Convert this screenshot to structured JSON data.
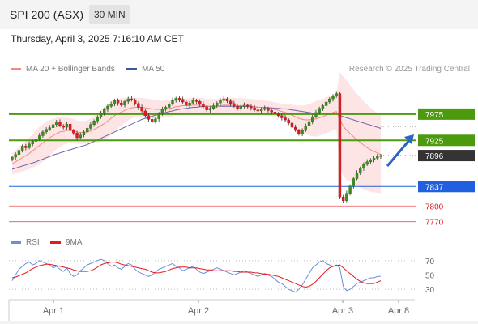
{
  "header": {
    "title": "SPI 200 (ASX)",
    "timeframe": "30 MIN",
    "datetime": "Thursday, April 3, 2025 7:16:10 AM CET"
  },
  "legend": {
    "main": [
      {
        "label": "MA 20 + Bollinger Bands",
        "color": "#f28b82"
      },
      {
        "label": "MA 50",
        "color": "#3c5a99"
      }
    ],
    "rsi": [
      {
        "label": "RSI",
        "color": "#6a8fd8"
      },
      {
        "label": "9MA",
        "color": "#e31b23"
      }
    ],
    "research": "Research © 2025 Trading Central"
  },
  "chart_data": {
    "type": "candlestick",
    "price_levels": [
      {
        "value": 7975,
        "label": "7975",
        "kind": "resistance",
        "color": "#4c9a0e"
      },
      {
        "value": 7925,
        "label": "7925",
        "kind": "pivot",
        "color": "#4c9a0e"
      },
      {
        "value": 7896,
        "label": "7896",
        "kind": "last",
        "color": "#333333"
      },
      {
        "value": 7837,
        "label": "7837",
        "kind": "support",
        "color": "#2060e0"
      },
      {
        "value": 7800,
        "label": "7800",
        "kind": "support",
        "color": "#e31b23"
      },
      {
        "value": 7770,
        "label": "7770",
        "kind": "support",
        "color": "#e31b23"
      }
    ],
    "x_ticks": [
      "Apr 1",
      "Apr 2",
      "Apr 3",
      "Apr 8"
    ],
    "price_range": [
      7768,
      8035
    ],
    "closes": [
      7893,
      7898,
      7906,
      7914,
      7911,
      7918,
      7923,
      7927,
      7934,
      7941,
      7946,
      7949,
      7955,
      7960,
      7953,
      7950,
      7956,
      7944,
      7939,
      7930,
      7935,
      7941,
      7948,
      7955,
      7962,
      7969,
      7976,
      7984,
      7990,
      7994,
      8001,
      7996,
      7992,
      7999,
      8004,
      8002,
      7995,
      7988,
      7981,
      7972,
      7965,
      7961,
      7966,
      7975,
      7984,
      7988,
      7994,
      8001,
      8005,
      8003,
      7998,
      7992,
      7996,
      8001,
      7999,
      7994,
      7989,
      7983,
      7986,
      7991,
      7996,
      8001,
      8004,
      8000,
      7995,
      7990,
      7986,
      7989,
      7992,
      7990,
      7987,
      7983,
      7981,
      7984,
      7986,
      7982,
      7979,
      7976,
      7972,
      7968,
      7964,
      7958,
      7950,
      7944,
      7938,
      7944,
      7952,
      7961,
      7970,
      7978,
      7986,
      7991,
      7998,
      8004,
      8009,
      8014,
      7817,
      7810,
      7824,
      7838,
      7852,
      7863,
      7872,
      7879,
      7884,
      7888,
      7891,
      7894,
      7896
    ],
    "ma20": [
      7880,
      7884,
      7888,
      7892,
      7896,
      7900,
      7905,
      7910,
      7915,
      7920,
      7925,
      7930,
      7934,
      7938,
      7941,
      7942,
      7944,
      7944,
      7943,
      7941,
      7940,
      7940,
      7941,
      7943,
      7946,
      7949,
      7953,
      7957,
      7962,
      7967,
      7972,
      7976,
      7979,
      7982,
      7985,
      7987,
      7988,
      7988,
      7988,
      7987,
      7986,
      7985,
      7984,
      7984,
      7984,
      7985,
      7986,
      7987,
      7989,
      7990,
      7991,
      7991,
      7991,
      7992,
      7992,
      7992,
      7991,
      7990,
      7990,
      7990,
      7990,
      7991,
      7992,
      7992,
      7992,
      7992,
      7991,
      7991,
      7991,
      7990,
      7990,
      7989,
      7988,
      7988,
      7987,
      7986,
      7985,
      7984,
      7982,
      7980,
      7978,
      7976,
      7973,
      7970,
      7967,
      7965,
      7964,
      7964,
      7965,
      7966,
      7968,
      7970,
      7973,
      7975,
      7978,
      7980,
      7965,
      7952,
      7944,
      7938,
      7932,
      7926,
      7921,
      7916,
      7911,
      7907,
      7904,
      7901,
      7898
    ],
    "ma50": [
      7870,
      7872,
      7874,
      7876,
      7878,
      7880,
      7882,
      7884,
      7887,
      7889,
      7892,
      7894,
      7897,
      7899,
      7901,
      7903,
      7905,
      7907,
      7909,
      7911,
      7913,
      7915,
      7917,
      7920,
      7923,
      7926,
      7929,
      7932,
      7935,
      7938,
      7941,
      7944,
      7947,
      7950,
      7953,
      7956,
      7959,
      7962,
      7965,
      7967,
      7969,
      7971,
      7973,
      7975,
      7977,
      7978,
      7980,
      7981,
      7983,
      7984,
      7985,
      7986,
      7987,
      7988,
      7988,
      7989,
      7989,
      7990,
      7990,
      7990,
      7990,
      7990,
      7990,
      7990,
      7990,
      7990,
      7990,
      7990,
      7990,
      7989,
      7989,
      7989,
      7988,
      7988,
      7988,
      7987,
      7987,
      7986,
      7986,
      7985,
      7985,
      7984,
      7983,
      7982,
      7981,
      7980,
      7979,
      7978,
      7977,
      7976,
      7975,
      7975,
      7975,
      7975,
      7976,
      7976,
      7973,
      7970,
      7968,
      7966,
      7964,
      7962,
      7960,
      7958,
      7956,
      7954,
      7952,
      7950,
      7948
    ],
    "bb_width": [
      20,
      22,
      24,
      26,
      28,
      30,
      32,
      34,
      36,
      36,
      36,
      34,
      32,
      30,
      28,
      26,
      24,
      24,
      22,
      22,
      22,
      22,
      22,
      24,
      26,
      28,
      30,
      32,
      32,
      32,
      30,
      28,
      26,
      24,
      22,
      20,
      18,
      18,
      18,
      18,
      18,
      18,
      18,
      18,
      16,
      16,
      16,
      16,
      16,
      16,
      14,
      14,
      14,
      14,
      14,
      14,
      14,
      14,
      14,
      14,
      14,
      14,
      14,
      14,
      14,
      14,
      14,
      14,
      14,
      14,
      14,
      14,
      14,
      14,
      14,
      14,
      14,
      14,
      14,
      15,
      16,
      18,
      20,
      22,
      24,
      26,
      28,
      30,
      32,
      34,
      34,
      34,
      34,
      34,
      34,
      34,
      90,
      95,
      95,
      92,
      90,
      88,
      86,
      84,
      82,
      80,
      78,
      76,
      74
    ],
    "rsi": {
      "levels": [
        70,
        50,
        30
      ],
      "range": [
        20,
        80
      ],
      "values": [
        42,
        50,
        58,
        62,
        66,
        68,
        64,
        66,
        70,
        68,
        66,
        64,
        60,
        62,
        58,
        55,
        60,
        52,
        48,
        50,
        56,
        60,
        64,
        66,
        68,
        70,
        72,
        70,
        66,
        62,
        64,
        60,
        58,
        62,
        66,
        64,
        58,
        54,
        52,
        50,
        48,
        50,
        54,
        58,
        60,
        62,
        64,
        66,
        62,
        60,
        56,
        58,
        60,
        62,
        58,
        54,
        52,
        54,
        56,
        58,
        60,
        58,
        56,
        54,
        52,
        50,
        52,
        54,
        56,
        54,
        52,
        50,
        48,
        50,
        52,
        50,
        48,
        44,
        40,
        38,
        34,
        30,
        28,
        26,
        30,
        36,
        44,
        52,
        60,
        64,
        68,
        70,
        66,
        64,
        62,
        64,
        60,
        34,
        28,
        30,
        34,
        38,
        40,
        42,
        44,
        46,
        46,
        48,
        48
      ],
      "ma9": [
        46,
        47,
        49,
        51,
        53,
        56,
        59,
        61,
        63,
        64,
        65,
        65,
        64,
        63,
        62,
        61,
        60,
        59,
        57,
        56,
        55,
        55,
        55,
        56,
        58,
        61,
        64,
        66,
        67,
        68,
        68,
        67,
        65,
        64,
        63,
        62,
        61,
        60,
        59,
        58,
        56,
        54,
        53,
        53,
        54,
        55,
        57,
        59,
        60,
        61,
        61,
        61,
        60,
        60,
        60,
        59,
        58,
        57,
        57,
        56,
        56,
        56,
        56,
        56,
        56,
        55,
        55,
        54,
        54,
        54,
        54,
        53,
        53,
        52,
        51,
        51,
        50,
        49,
        48,
        46,
        44,
        42,
        40,
        38,
        36,
        34,
        33,
        34,
        37,
        41,
        46,
        51,
        56,
        60,
        62,
        63,
        64,
        60,
        56,
        52,
        48,
        44,
        41,
        39,
        38,
        38,
        38,
        40,
        42
      ]
    }
  }
}
